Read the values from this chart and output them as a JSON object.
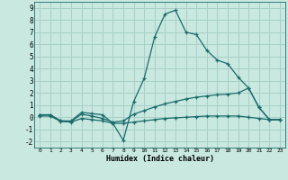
{
  "xlabel": "Humidex (Indice chaleur)",
  "background_color": "#c8e8e0",
  "grid_color": "#a8d0c8",
  "line_color": "#1a6b6b",
  "xlim": [
    -0.5,
    23.5
  ],
  "ylim": [
    -2.5,
    9.5
  ],
  "xticks": [
    0,
    1,
    2,
    3,
    4,
    5,
    6,
    7,
    8,
    9,
    10,
    11,
    12,
    13,
    14,
    15,
    16,
    17,
    18,
    19,
    20,
    21,
    22,
    23
  ],
  "yticks": [
    -2,
    -1,
    0,
    1,
    2,
    3,
    4,
    5,
    6,
    7,
    8,
    9
  ],
  "series": [
    {
      "x": [
        0,
        1,
        2,
        3,
        4,
        5,
        6,
        7,
        8,
        9,
        10,
        11,
        12,
        13,
        14,
        15,
        16,
        17,
        18,
        19,
        20,
        21,
        22,
        23
      ],
      "y": [
        0.2,
        0.2,
        -0.3,
        -0.3,
        0.4,
        0.3,
        0.2,
        -0.5,
        -1.9,
        1.3,
        3.2,
        6.6,
        8.5,
        8.8,
        7.0,
        6.8,
        5.5,
        4.7,
        4.4,
        3.3,
        2.4,
        0.8,
        -0.2,
        -0.2
      ]
    },
    {
      "x": [
        0,
        1,
        2,
        3,
        4,
        5,
        6,
        7,
        8,
        9,
        10,
        11,
        12,
        13,
        14,
        15,
        16,
        17,
        18,
        19,
        20,
        21,
        22,
        23
      ],
      "y": [
        0.2,
        0.2,
        -0.3,
        -0.35,
        0.25,
        0.1,
        -0.1,
        -0.4,
        -0.3,
        0.25,
        0.55,
        0.85,
        1.1,
        1.3,
        1.5,
        1.65,
        1.75,
        1.85,
        1.9,
        2.0,
        2.4,
        0.8,
        -0.2,
        -0.2
      ]
    },
    {
      "x": [
        0,
        1,
        2,
        3,
        4,
        5,
        6,
        7,
        8,
        9,
        10,
        11,
        12,
        13,
        14,
        15,
        16,
        17,
        18,
        19,
        20,
        21,
        22,
        23
      ],
      "y": [
        0.1,
        0.1,
        -0.35,
        -0.4,
        -0.1,
        -0.2,
        -0.3,
        -0.5,
        -0.5,
        -0.4,
        -0.3,
        -0.2,
        -0.1,
        -0.05,
        0.0,
        0.05,
        0.1,
        0.1,
        0.1,
        0.1,
        0.0,
        -0.1,
        -0.2,
        -0.2
      ]
    }
  ]
}
